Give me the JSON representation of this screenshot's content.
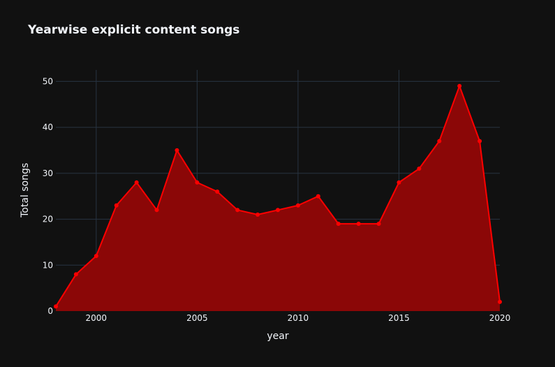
{
  "chart_data": {
    "type": "area",
    "title": "Yearwise explicit content songs",
    "xlabel": "year",
    "ylabel": "Total songs",
    "x": [
      1998,
      1999,
      2000,
      2001,
      2002,
      2003,
      2004,
      2005,
      2006,
      2007,
      2008,
      2009,
      2010,
      2011,
      2012,
      2013,
      2014,
      2015,
      2016,
      2017,
      2018,
      2019,
      2020
    ],
    "series": [
      {
        "values": [
          1,
          8,
          12,
          23,
          28,
          22,
          35,
          28,
          26,
          22,
          21,
          22,
          23,
          25,
          19,
          19,
          19,
          28,
          31,
          37,
          49,
          37,
          2
        ]
      }
    ],
    "xlim": [
      1998,
      2020
    ],
    "ylim": [
      0,
      52.5
    ],
    "xticks": [
      "2000",
      "2005",
      "2010",
      "2015",
      "2020"
    ],
    "yticks": [
      "0",
      "10",
      "20",
      "30",
      "40",
      "50"
    ],
    "grid": true,
    "colors": {
      "background": "#111111",
      "line": "#ff0000",
      "fill": "#8b0707",
      "grid": "#283442",
      "text": "#f2f5fa"
    }
  }
}
